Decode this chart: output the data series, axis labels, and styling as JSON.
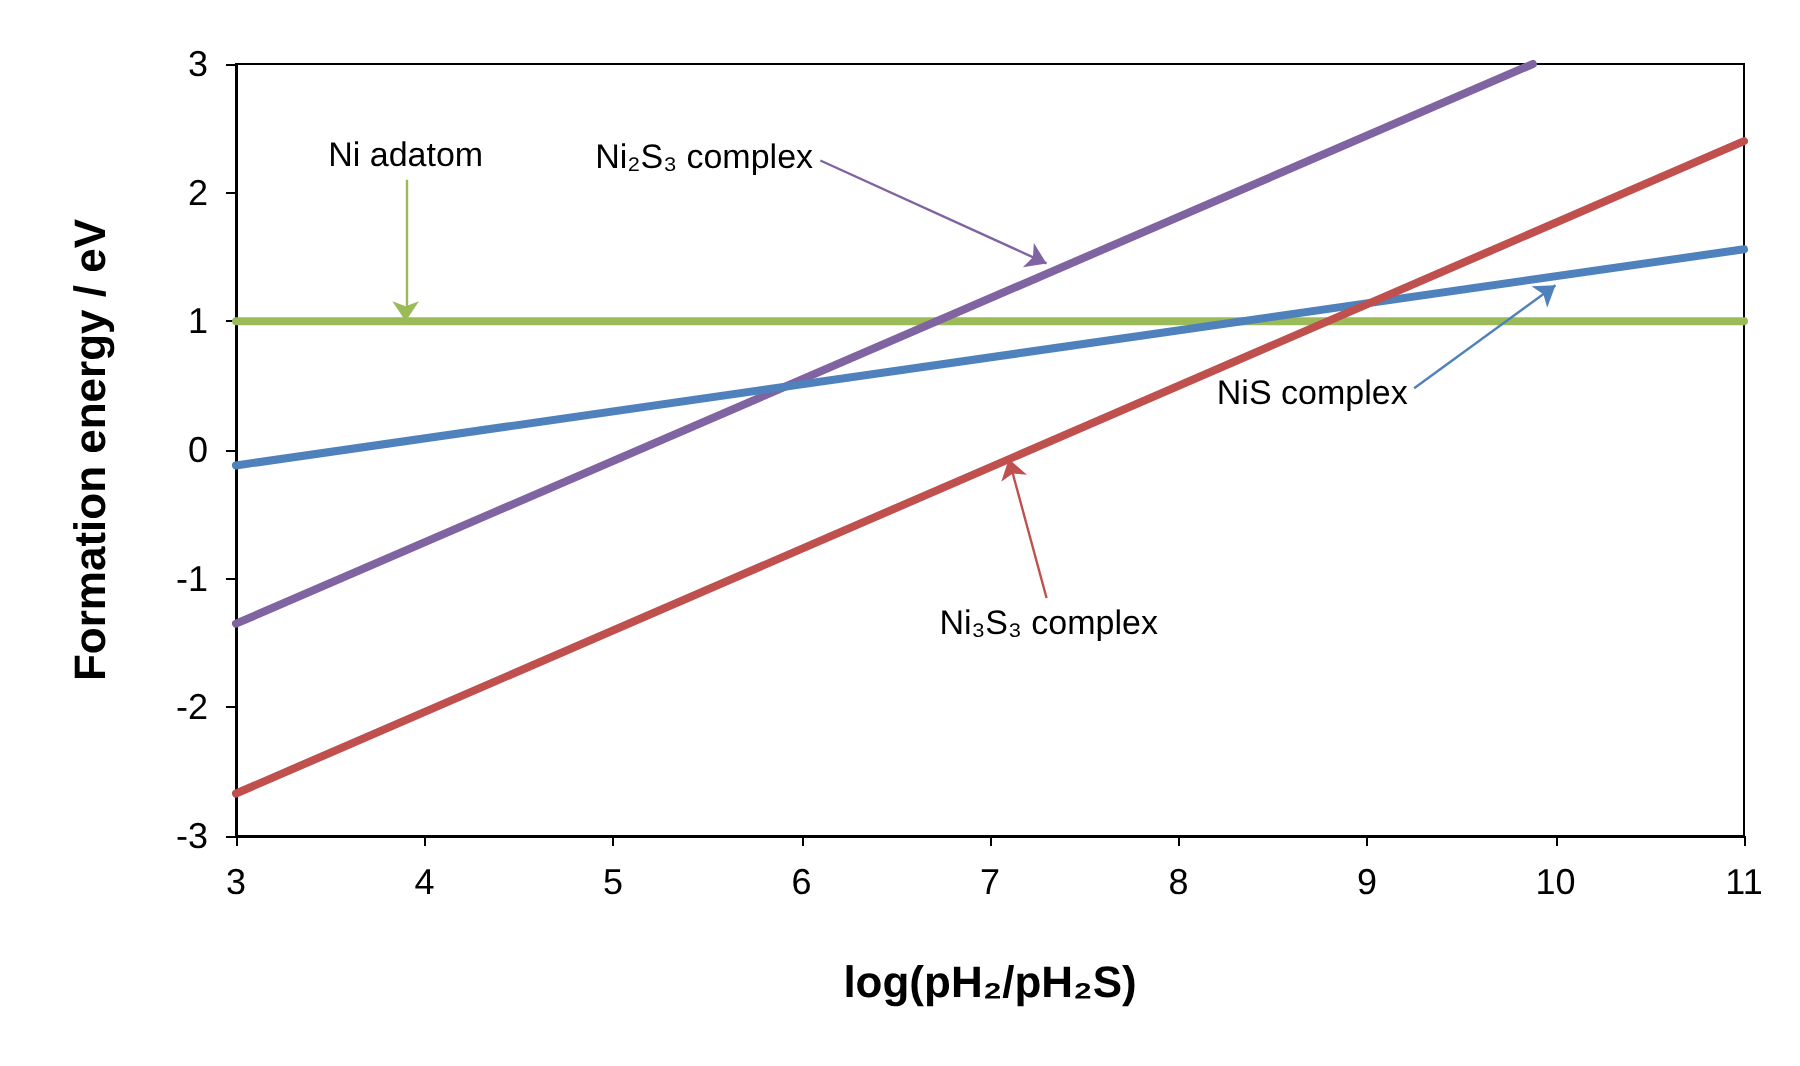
{
  "chart_data": {
    "type": "line",
    "xlabel": "log(pH₂/pH₂S)",
    "ylabel": "Formation energy / eV",
    "xlim": [
      3,
      11
    ],
    "ylim": [
      -3,
      3
    ],
    "xticks": [
      3,
      4,
      5,
      6,
      7,
      8,
      9,
      10,
      11
    ],
    "yticks": [
      -3,
      -2,
      -1,
      0,
      1,
      2,
      3
    ],
    "grid": false,
    "marker": "none",
    "line_style": "solid",
    "series": [
      {
        "color": "#9bbb59",
        "x": [
          3,
          11
        ],
        "values": [
          1,
          1
        ]
      },
      {
        "color": "#8064a2",
        "x": [
          3,
          9.88
        ],
        "values": [
          -1.35,
          3
        ]
      },
      {
        "color": "#4f81bd",
        "x": [
          3,
          11
        ],
        "values": [
          -0.12,
          1.56
        ]
      },
      {
        "color": "#c0504d",
        "x": [
          3,
          11
        ],
        "values": [
          -2.67,
          2.4
        ]
      }
    ],
    "annotations": [
      {
        "text": "Ni adatom",
        "x": 3.9,
        "y": 1
      },
      {
        "text": "Ni₂S₃ complex",
        "x": 7.3,
        "y": 1.45
      },
      {
        "text": "NiS complex",
        "x": 10,
        "y": 1.28
      },
      {
        "text": "Ni₃S₃ complex",
        "x": 7.1,
        "y": -0.07
      }
    ]
  }
}
